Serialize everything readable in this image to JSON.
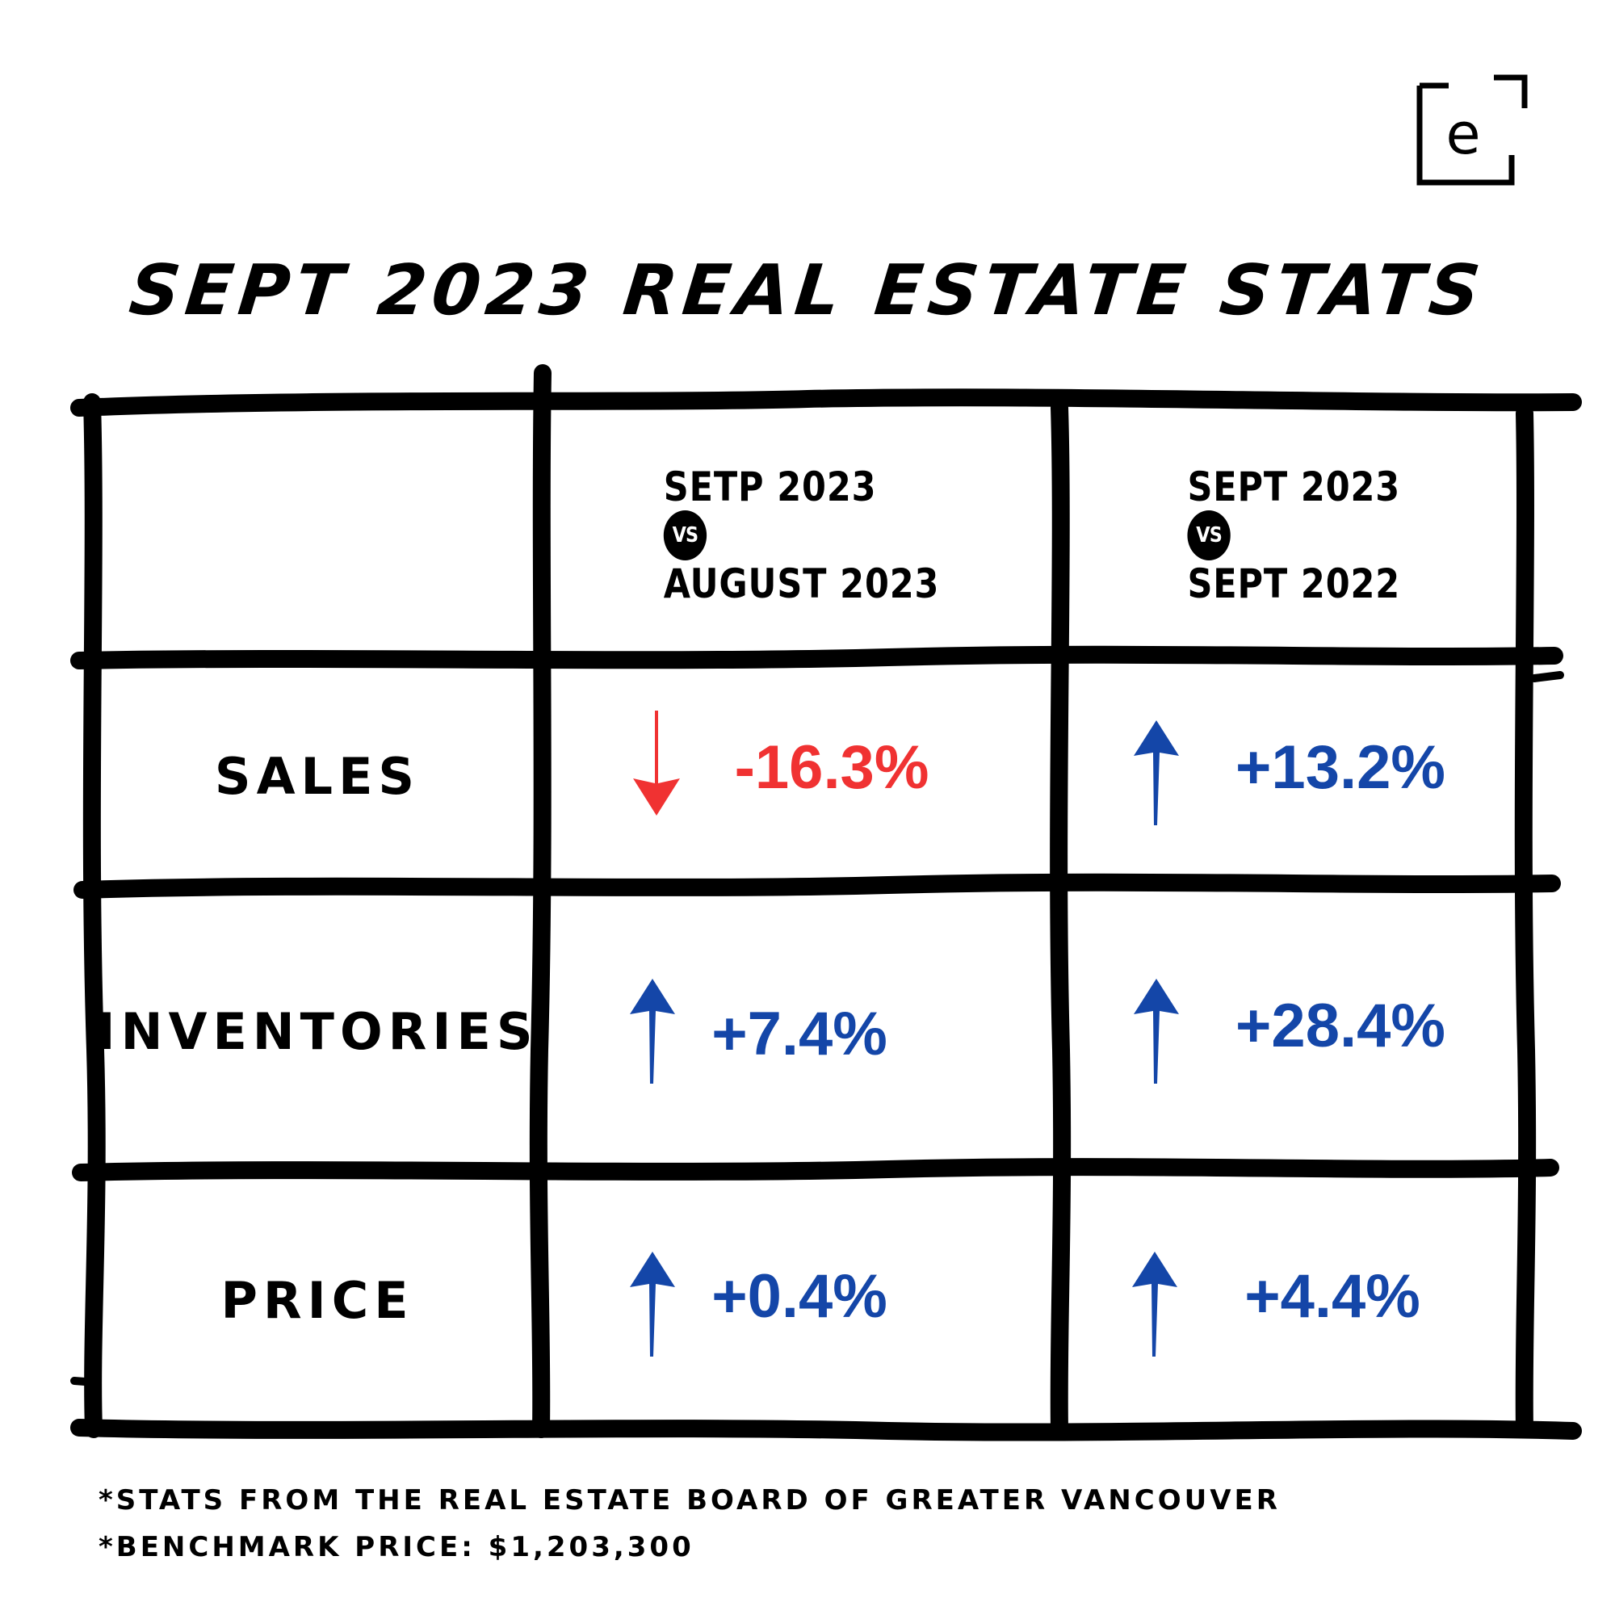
{
  "logo": {
    "letter": "e",
    "icon": "brand-e-logo"
  },
  "title": "SEPT 2023 REAL ESTATE STATS",
  "colors": {
    "down": "#f03232",
    "up": "#1446a8",
    "grid": "#000000"
  },
  "table": {
    "columns": [
      {
        "top": "SETP 2023",
        "vs": "VS",
        "bottom": "AUGUST 2023"
      },
      {
        "top": "SEPT 2023",
        "vs": "VS",
        "bottom": "SEPT 2022"
      }
    ],
    "rows": [
      {
        "label": "SALES",
        "values": [
          {
            "text": "-16.3%",
            "direction": "down",
            "icon": "arrow-down-icon"
          },
          {
            "text": "+13.2%",
            "direction": "up",
            "icon": "arrow-up-icon"
          }
        ]
      },
      {
        "label": "INVENTORIES",
        "values": [
          {
            "text": "+7.4%",
            "direction": "up",
            "icon": "arrow-up-icon"
          },
          {
            "text": "+28.4%",
            "direction": "up",
            "icon": "arrow-up-icon"
          }
        ]
      },
      {
        "label": "PRICE",
        "values": [
          {
            "text": "+0.4%",
            "direction": "up",
            "icon": "arrow-up-icon"
          },
          {
            "text": "+4.4%",
            "direction": "up",
            "icon": "arrow-up-icon"
          }
        ]
      }
    ]
  },
  "footnotes": [
    "*STATS FROM THE REAL ESTATE BOARD OF GREATER VANCOUVER",
    "*BENCHMARK PRICE: $1,203,300"
  ]
}
